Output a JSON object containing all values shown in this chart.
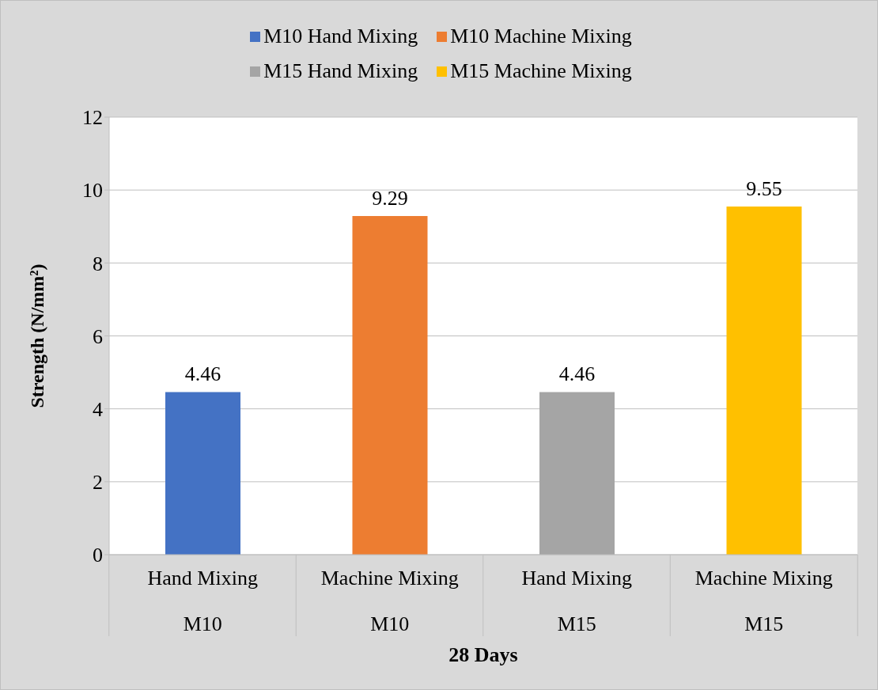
{
  "chart_data": {
    "type": "bar",
    "xlabel": "28 Days",
    "ylabel": "Strength (N/mm²)",
    "categories": [
      "Hand Mixing\nM10",
      "Machine Mixing\nM10",
      "Hand Mixing\nM15",
      "Machine Mixing\nM15"
    ],
    "series": [
      {
        "name": "M10 Hand Mixing",
        "color": "#4472c4",
        "values": [
          4.46,
          null,
          null,
          null
        ]
      },
      {
        "name": "M10 Machine Mixing",
        "color": "#ed7d31",
        "values": [
          null,
          9.29,
          null,
          null
        ]
      },
      {
        "name": "M15 Hand Mixing",
        "color": "#a5a5a5",
        "values": [
          null,
          null,
          4.46,
          null
        ]
      },
      {
        "name": "M15 Machine Mixing",
        "color": "#ffc000",
        "values": [
          null,
          null,
          null,
          9.55
        ]
      }
    ],
    "stacked": true,
    "ylim": [
      0,
      12
    ],
    "yticks": [
      0,
      2,
      4,
      6,
      8,
      10,
      12
    ],
    "grid": "y",
    "legend": "top",
    "data_labels": true
  }
}
